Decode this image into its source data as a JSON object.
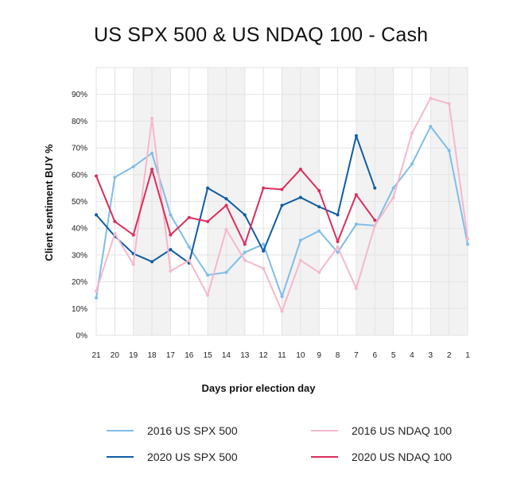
{
  "chart_data": {
    "type": "line",
    "title": "US SPX 500 & US NDAQ 100 - Cash",
    "xlabel": "Days prior election day",
    "ylabel": "Client sentiment BUY %",
    "x": [
      "21",
      "20",
      "19",
      "18",
      "17",
      "16",
      "15",
      "14",
      "13",
      "12",
      "11",
      "10",
      "9",
      "8",
      "7",
      "6",
      "5",
      "4",
      "3",
      "2",
      "1"
    ],
    "y_ticks": [
      "0%",
      "10%",
      "20%",
      "30%",
      "40%",
      "50%",
      "60%",
      "70%",
      "80%",
      "90%"
    ],
    "ylim": [
      0,
      100
    ],
    "grid": true,
    "shaded_bands": [
      [
        "19",
        "17"
      ],
      [
        "15",
        "13"
      ],
      [
        "11",
        "9"
      ],
      [
        "7",
        "5"
      ],
      [
        "3",
        "1"
      ]
    ],
    "legend_position": "bottom",
    "series": [
      {
        "name": "2016 US SPX 500",
        "color": "#7fbde9",
        "values": [
          14,
          59,
          63,
          68,
          45,
          33,
          22.5,
          23.5,
          31,
          34,
          14.5,
          35.5,
          39,
          31,
          41.5,
          41,
          55,
          64,
          78,
          69,
          34
        ]
      },
      {
        "name": "2020 US SPX 500",
        "color": "#0f5ca3",
        "values": [
          45,
          37,
          30.5,
          27.5,
          32,
          27,
          55,
          51,
          45,
          31.5,
          48.5,
          51.5,
          48,
          45,
          74.5,
          55,
          null,
          null,
          null,
          null,
          null
        ]
      },
      {
        "name": "2016 US NDAQ 100",
        "color": "#f6b8ca",
        "values": [
          16.5,
          38,
          26.5,
          81,
          24,
          28,
          15,
          39.5,
          28,
          25,
          9,
          28,
          23.5,
          33,
          17.5,
          41,
          51.5,
          75.5,
          88.5,
          86.5,
          36
        ]
      },
      {
        "name": "2020 US NDAQ 100",
        "color": "#dd2d5c",
        "values": [
          59.5,
          42.5,
          37.5,
          62,
          37.5,
          44,
          42.5,
          48.5,
          34,
          55,
          54.5,
          62,
          54,
          35,
          52.5,
          43,
          null,
          null,
          null,
          null,
          null
        ]
      }
    ]
  }
}
